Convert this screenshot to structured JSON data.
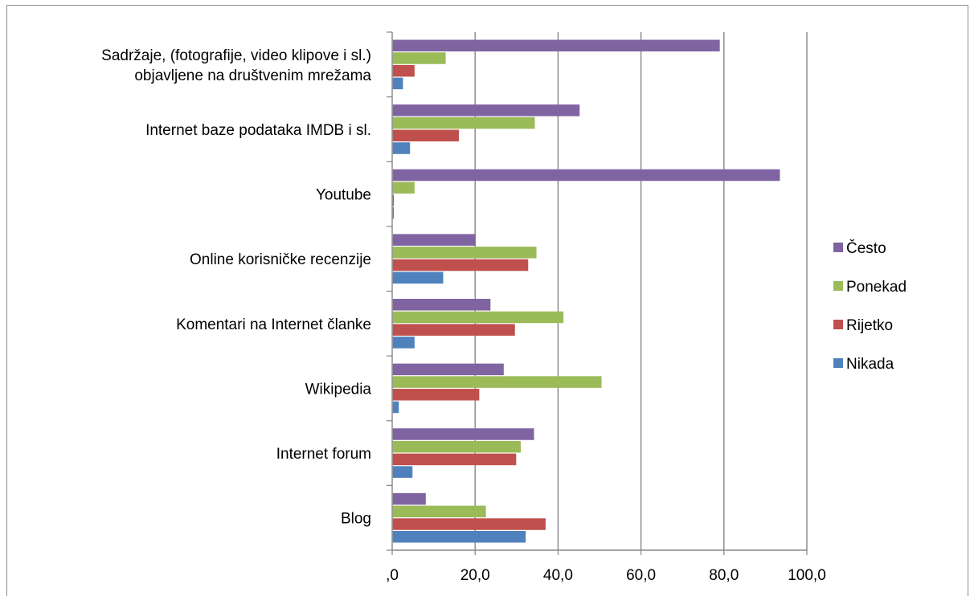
{
  "chart_data": {
    "type": "bar",
    "orientation": "horizontal",
    "categories": [
      "Blog",
      "Internet forum",
      "Wikipedia",
      "Komentari na Internet članke",
      "Online korisničke recenzije",
      "Youtube",
      "Internet baze podataka IMDB i sl.",
      "Sadržaje, (fotografije, video klipove i sl.)\nobjavljene na društvenim mrežama"
    ],
    "series": [
      {
        "name": "Nikada",
        "color": "#4f81bd",
        "values": [
          32.2,
          4.9,
          1.6,
          5.4,
          12.3,
          0.4,
          4.3,
          2.6
        ]
      },
      {
        "name": "Rijetko",
        "color": "#c0504d",
        "values": [
          37.0,
          29.9,
          21.0,
          29.6,
          32.8,
          0.4,
          16.1,
          5.4
        ]
      },
      {
        "name": "Ponekad",
        "color": "#9bbb59",
        "values": [
          22.6,
          31.0,
          50.5,
          41.3,
          34.8,
          5.4,
          34.4,
          12.9
        ]
      },
      {
        "name": "Često",
        "color": "#8064a2",
        "values": [
          8.1,
          34.2,
          26.9,
          23.7,
          20.1,
          93.5,
          45.2,
          79.0
        ]
      }
    ],
    "xlim": [
      0,
      100
    ],
    "xticks": [
      ",0",
      "20,0",
      "40,0",
      "60,0",
      "80,0",
      "100,0"
    ],
    "legend_position": "right",
    "legend_order": [
      "Često",
      "Ponekad",
      "Rijetko",
      "Nikada"
    ],
    "grid": true,
    "title": "",
    "xlabel": "",
    "ylabel": ""
  }
}
